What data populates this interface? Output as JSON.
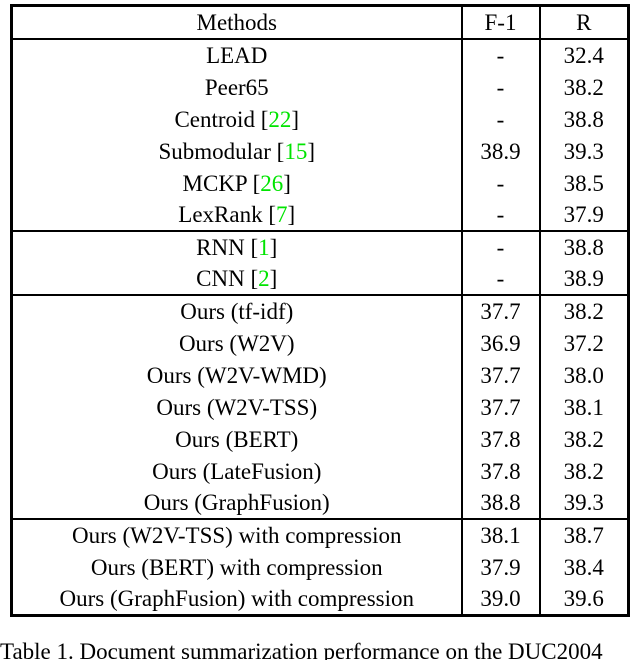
{
  "colors": {
    "citation": "#00e400",
    "border": "#000000",
    "text": "#000000"
  },
  "table": {
    "header": {
      "methods": "Methods",
      "f1": "F-1",
      "r": "R"
    },
    "groups": [
      {
        "rows": [
          {
            "method": [
              {
                "text": "LEAD"
              }
            ],
            "f1": "-",
            "r": "32.4"
          },
          {
            "method": [
              {
                "text": "Peer65"
              }
            ],
            "f1": "-",
            "r": "38.2"
          },
          {
            "method": [
              {
                "text": "Centroid ["
              },
              {
                "text": "22",
                "citation": true
              },
              {
                "text": "]"
              }
            ],
            "f1": "-",
            "r": "38.8"
          },
          {
            "method": [
              {
                "text": "Submodular ["
              },
              {
                "text": "15",
                "citation": true
              },
              {
                "text": "]"
              }
            ],
            "f1": "38.9",
            "r": "39.3"
          },
          {
            "method": [
              {
                "text": "MCKP ["
              },
              {
                "text": "26",
                "citation": true
              },
              {
                "text": "]"
              }
            ],
            "f1": "-",
            "r": "38.5"
          },
          {
            "method": [
              {
                "text": "LexRank ["
              },
              {
                "text": "7",
                "citation": true
              },
              {
                "text": "]"
              }
            ],
            "f1": "-",
            "r": "37.9"
          }
        ]
      },
      {
        "rows": [
          {
            "method": [
              {
                "text": "RNN ["
              },
              {
                "text": "1",
                "citation": true
              },
              {
                "text": "]"
              }
            ],
            "f1": "-",
            "r": "38.8"
          },
          {
            "method": [
              {
                "text": "CNN ["
              },
              {
                "text": "2",
                "citation": true
              },
              {
                "text": "]"
              }
            ],
            "f1": "-",
            "r": "38.9"
          }
        ]
      },
      {
        "rows": [
          {
            "method": [
              {
                "text": "Ours (tf-idf)"
              }
            ],
            "f1": "37.7",
            "r": "38.2"
          },
          {
            "method": [
              {
                "text": "Ours (W2V)"
              }
            ],
            "f1": "36.9",
            "r": "37.2"
          },
          {
            "method": [
              {
                "text": "Ours (W2V-WMD)"
              }
            ],
            "f1": "37.7",
            "r": "38.0"
          },
          {
            "method": [
              {
                "text": "Ours (W2V-TSS)"
              }
            ],
            "f1": "37.7",
            "r": "38.1"
          },
          {
            "method": [
              {
                "text": "Ours (BERT)"
              }
            ],
            "f1": "37.8",
            "r": "38.2"
          },
          {
            "method": [
              {
                "text": "Ours (LateFusion)"
              }
            ],
            "f1": "37.8",
            "r": "38.2"
          },
          {
            "method": [
              {
                "text": "Ours (GraphFusion)"
              }
            ],
            "f1": "38.8",
            "r": "39.3"
          }
        ]
      },
      {
        "rows": [
          {
            "method": [
              {
                "text": "Ours (W2V-TSS) with compression"
              }
            ],
            "f1": "38.1",
            "r": "38.7"
          },
          {
            "method": [
              {
                "text": "Ours (BERT) with compression"
              }
            ],
            "f1": "37.9",
            "r": "38.4"
          },
          {
            "method": [
              {
                "text": "Ours (GraphFusion) with compression"
              }
            ],
            "f1": "39.0",
            "r": "39.6",
            "bold": true
          }
        ]
      }
    ]
  },
  "caption": "Table 1. Document summarization performance on the DUC2004"
}
